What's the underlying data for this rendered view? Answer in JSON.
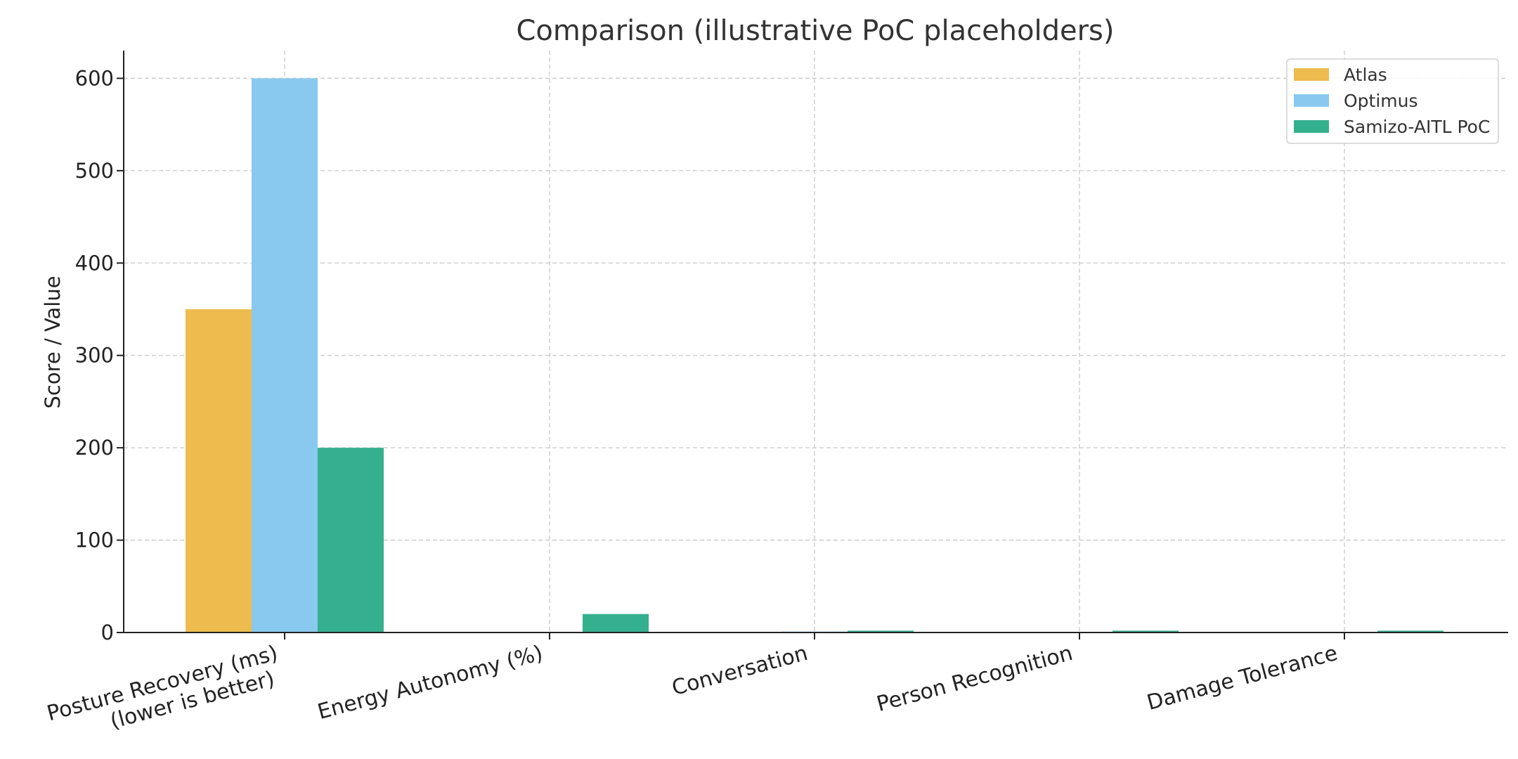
{
  "chart_data": {
    "type": "bar",
    "title": "Comparison (illustrative PoC placeholders)",
    "xlabel": "",
    "ylabel": "Score / Value",
    "ylim": [
      0,
      630
    ],
    "yticks": [
      0,
      100,
      200,
      300,
      400,
      500,
      600
    ],
    "categories": [
      [
        "Posture Recovery (ms)",
        "(lower is better)"
      ],
      [
        "Energy Autonomy (%)"
      ],
      [
        "Conversation"
      ],
      [
        "Person Recognition"
      ],
      [
        "Damage Tolerance"
      ]
    ],
    "series": [
      {
        "name": "Atlas",
        "color": "#EDBB4E",
        "values": [
          350,
          0,
          0,
          0,
          0
        ]
      },
      {
        "name": "Optimus",
        "color": "#89C9EF",
        "values": [
          600,
          0,
          1,
          0,
          0
        ]
      },
      {
        "name": "Samizo-AITL PoC",
        "color": "#35B08F",
        "values": [
          200,
          20,
          2,
          2,
          2
        ]
      }
    ],
    "grid": true,
    "legend_position": "top-right"
  }
}
